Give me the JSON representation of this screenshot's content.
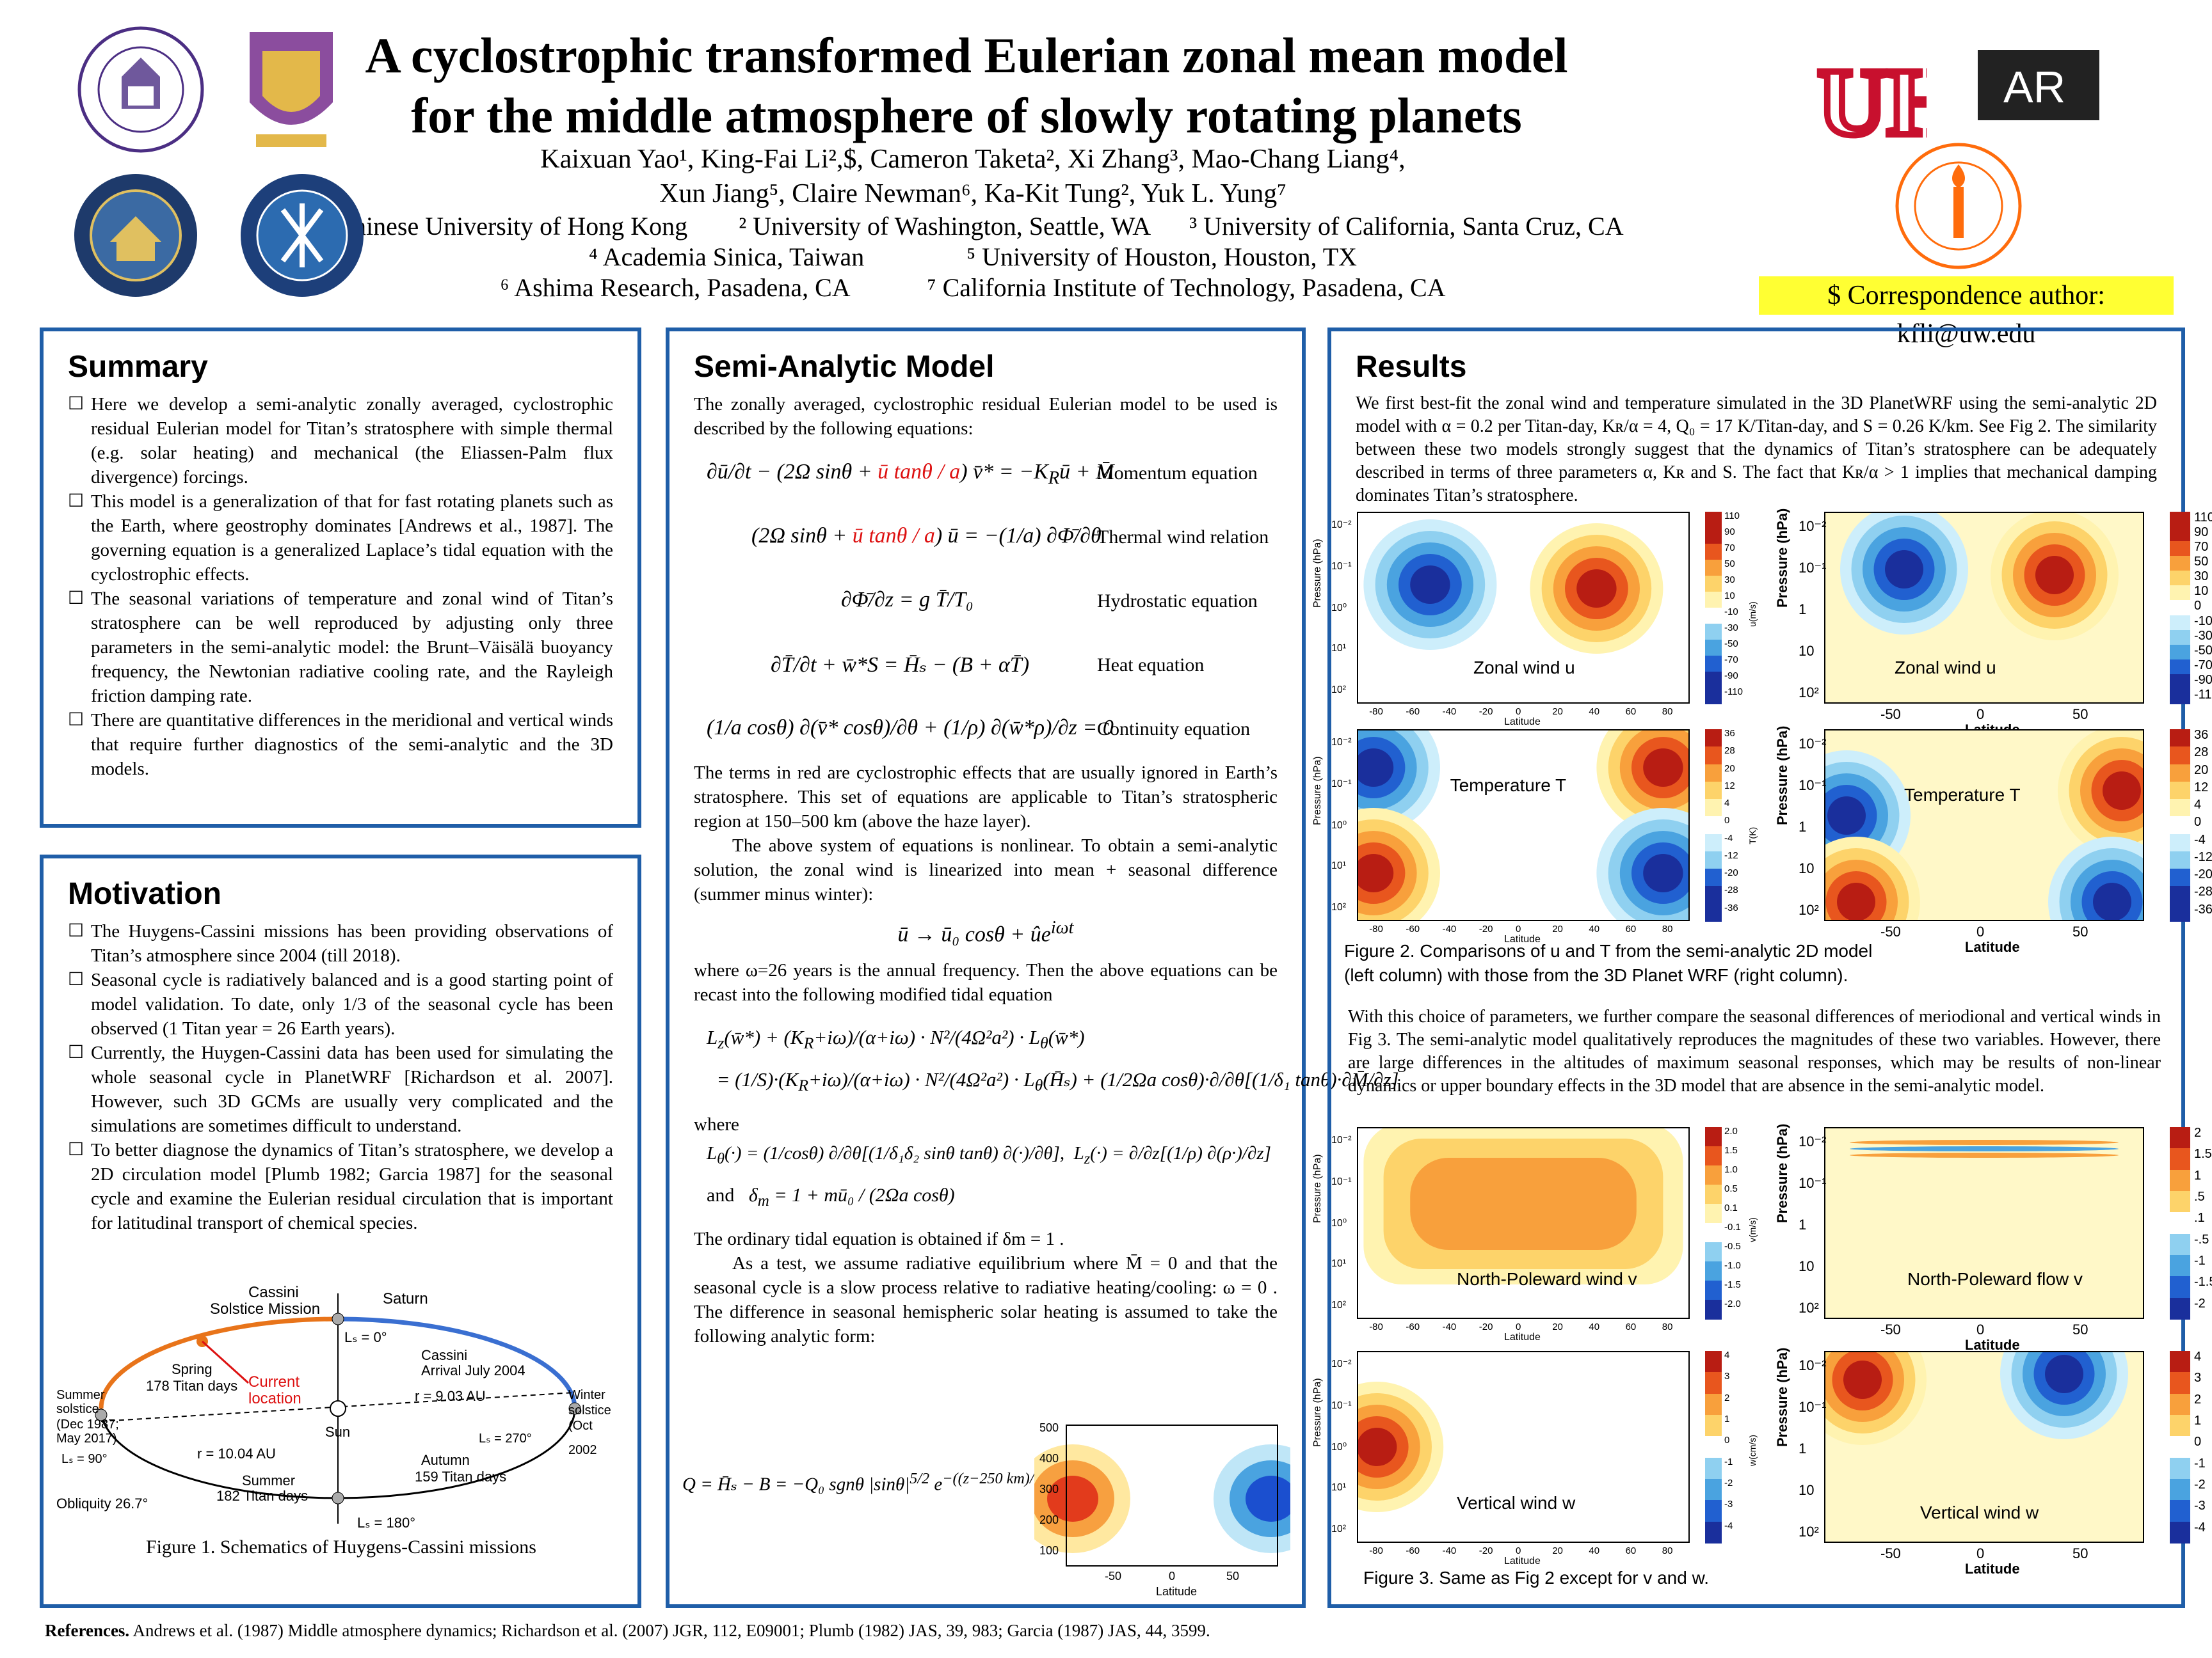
{
  "header": {
    "title_line1": "A cyclostrophic transformed Eulerian zonal mean model",
    "title_line2": "for the middle atmosphere of slowly rotating planets",
    "authors_line1": "Kaixuan Yao¹, King-Fai Li²,$, Cameron Taketa², Xi Zhang³, Mao-Chang Liang⁴,",
    "authors_line2": "Xun Jiang⁵, Claire Newman⁶, Ka-Kit Tung², Yuk L. Yung⁷",
    "aff1": "¹ Chinese University of Hong Kong",
    "aff2": "² University of Washington, Seattle, WA",
    "aff3": "³ University  of California, Santa Cruz, CA",
    "aff4": "⁴ Academia Sinica, Taiwan",
    "aff5": "⁵ University of Houston, Houston, TX",
    "aff6": "⁶ Ashima Research, Pasadena, CA",
    "aff7": "⁷ California Institute of Technology, Pasadena, CA",
    "correspondence": "$ Correspondence author: kfli@uw.edu",
    "logo_uh": "UH",
    "logo_ar": "AR"
  },
  "summary": {
    "heading": "Summary",
    "items": [
      "Here we develop a semi-analytic zonally averaged, cyclostrophic residual Eulerian model for Titan’s stratosphere with simple thermal (e.g. solar heating) and mechanical (the Eliassen-Palm flux divergence) forcings.",
      "This model is a generalization of that for fast rotating planets such as the Earth, where geostrophy dominates [Andrews et al., 1987]. The governing equation is a generalized Laplace’s tidal equation with the cyclostrophic effects.",
      "The seasonal variations of temperature and zonal wind of Titan’s stratosphere can be well reproduced by adjusting only three parameters in the semi-analytic model: the Brunt–Väisälä buoyancy frequency, the Newtonian radiative cooling rate, and the Rayleigh friction damping rate.",
      "There are quantitative differences in the meridional and vertical winds that require further diagnostics of the semi-analytic and the 3D models."
    ]
  },
  "motivation": {
    "heading": "Motivation",
    "items": [
      "The Huygens-Cassini missions has been providing observations of Titan’s atmosphere since 2004 (till 2018).",
      "Seasonal cycle is radiatively balanced and is a good starting point of model validation. To date, only 1/3 of the seasonal cycle has been observed (1 Titan year = 26 Earth years).",
      "Currently, the Huygen-Cassini data has been used for simulating the whole seasonal cycle in PlanetWRF [Richardson et al. 2007]. However, such 3D GCMs are usually very complicated and the simulations are sometimes difficult to understand.",
      "To better diagnose the dynamics of Titan’s stratosphere, we develop a 2D circulation model [Plumb 1982; Garcia 1987] for the seasonal cycle and examine the Eulerian residual circulation that is important for latitudinal transport of chemical species."
    ],
    "figure1": {
      "cassini": "Cassini",
      "solstice_mission": "Solstice Mission",
      "saturn": "Saturn",
      "ls0": "Lₛ = 0°",
      "spring": "Spring",
      "spring_days": "178 Titan days",
      "current": "Current",
      "location": "location",
      "cassini_arrival": "Cassini",
      "arrival": "Arrival July 2004",
      "r_au": "r = 9.03 AU",
      "summer_solstice": "Summer",
      "solstice": "solstice",
      "summer_dates": "(Dec 1987;",
      "summer_dates2": "May 2017)",
      "ls90": "Lₛ = 90°",
      "r1004": "r = 10.04 AU",
      "sun": "Sun",
      "ls270": "Lₛ = 270°",
      "winter": "Winter",
      "winter_solstice": "solstice",
      "winter_date": "(Oct 2002",
      "autumn": "Autumn",
      "autumn_days": "159 Titan days",
      "summer": "Summer",
      "summer_days": "182 Titan days",
      "obliquity": "Obliquity 26.7°",
      "ls180": "Lₛ = 180°",
      "caption": "Figure 1. Schematics of Huygens-Cassini missions"
    }
  },
  "model": {
    "heading": "Semi-Analytic Model",
    "intro": "The zonally averaged, cyclostrophic residual Eulerian model to be used is described by the following equations:",
    "eq_names": [
      "Momentum equation",
      "Thermal wind relation",
      "Hydrostatic equation",
      "Heat equation",
      "Continuity equation"
    ],
    "para1": "The terms in red are cyclostrophic effects that are usually ignored in Earth’s stratosphere. This set of equations are applicable to Titan’s stratospheric region at 150–500 km (above the haze layer).",
    "para2": "The above system of equations is nonlinear. To obtain a semi-analytic solution, the zonal wind is linearized into mean + seasonal difference (summer minus winter):",
    "para3": "where ω=26 years is the annual frequency. Then the above equations can be recast into the following modified tidal equation",
    "where": "where",
    "and": "and",
    "para4": "The ordinary tidal equation is obtained if  δm = 1 .",
    "para5": "As a test, we assume radiative equilibrium where  M̄ = 0  and that the seasonal cycle is a slow process relative to radiative heating/cooling: ω = 0 . The difference in seasonal hemispheric solar heating is assumed to take the following analytic form:",
    "small_plot": {
      "yticks": [
        "500",
        "400",
        "300",
        "200",
        "100"
      ],
      "xticks": [
        "-50",
        "0",
        "50"
      ],
      "xlabel": "Latitude"
    }
  },
  "results": {
    "heading": "Results",
    "intro_a": "We first best-fit the zonal wind and temperature simulated in the 3D PlanetWRF using the semi-analytic 2D model with  α = 0.2 per Titan-day,  Kʀ/α = 4,  Q₀ = 17 K/Titan-day, and  S = 0.26 K/km. See Fig 2. The similarity between these two models strongly suggest that the dynamics of Titan’s stratosphere can be adequately described in terms of  three parameters  α, Kʀ and S.    The fact that Kʀ/α > 1  implies that mechanical damping dominates Titan’s stratosphere.",
    "fig2_caption_1": "Figure 2. Comparisons of u and T from the semi-analytic 2D model",
    "fig2_caption_2": "(left column) with those from the 3D Planet WRF (right column).",
    "para2": "With this choice of parameters, we further compare the seasonal differences of meriodional and vertical winds in Fig 3. The semi-analytic model qualitatively reproduces the magnitudes of these two variables. However, there are large differences in the altitudes of maximum seasonal responses, which may be results of non-linear dynamics or upper boundary effects in the 3D model that are absence in the semi-analytic model.",
    "fig3_caption": "Figure 3. Same as Fig 2 except for v and w.",
    "labels": {
      "zonal_left": "Zonal wind u",
      "zonal_right": "Zonal wind u",
      "temp_left": "Temperature T",
      "temp_right": "Temperature T",
      "v_left": "North-Poleward wind v",
      "v_right": "North-Poleward flow v",
      "w_left": "Vertical wind w",
      "w_right": "Vertical wind w",
      "pressure": "Pressure (hPa)",
      "latitude": "Latitude",
      "u_unit": "u(m/s)",
      "T_unit": "T(K)",
      "v_unit": "v(m/s)",
      "w_unit": "w(cm/s)"
    },
    "cb_u": [
      "110",
      "90",
      "70",
      "50",
      "30",
      "10",
      "-10",
      "-30",
      "-50",
      "-70",
      "-90",
      "-110"
    ],
    "cb_u2": [
      "110",
      "90",
      "70",
      "50",
      "30",
      "10",
      "0",
      "-10",
      "-30",
      "-50",
      "-70",
      "-90",
      "-110"
    ],
    "cb_T": [
      "36",
      "28",
      "20",
      "12",
      "4",
      "0",
      "-4",
      "-12",
      "-20",
      "-28",
      "-36"
    ],
    "cb_v": [
      "2.0",
      "1.5",
      "1.0",
      "0.5",
      "0.1",
      "-0.1",
      "-0.5",
      "-1.0",
      "-1.5",
      "-2.0"
    ],
    "cb_v2": [
      "2",
      "1.5",
      "1",
      ".5",
      ".1",
      "-.5",
      "-1",
      "-1.5",
      "-2"
    ],
    "cb_w": [
      "4",
      "3",
      "2",
      "1",
      "0",
      "-1",
      "-2",
      "-3",
      "-4"
    ],
    "ptick_left": [
      "10⁻²",
      "10⁻¹",
      "10⁰",
      "10¹",
      "10²"
    ],
    "ptick_right": [
      "10⁻²",
      "10⁻¹",
      "1",
      "10",
      "10²"
    ],
    "lat_left": [
      "-80",
      "-60",
      "-40",
      "-20",
      "0",
      "20",
      "40",
      "60",
      "80"
    ],
    "lat_right": [
      "-50",
      "0",
      "50"
    ]
  },
  "references": {
    "label": "References.",
    "text": " Andrews et al. (1987) Middle atmosphere dynamics; Richardson et al. (2007) JGR, 112, E09001; Plumb (1982) JAS, 39, 983; Garcia (1987) JAS, 44, 3599."
  }
}
